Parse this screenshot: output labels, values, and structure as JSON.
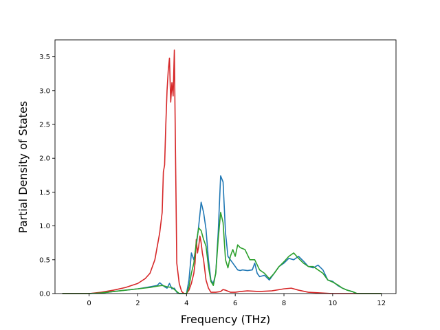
{
  "chart_data": {
    "type": "line",
    "title": "",
    "xlabel": "Frequency (THz)",
    "ylabel": "Partial Density of States",
    "xlim": [
      -1.4,
      12.6
    ],
    "ylim": [
      0,
      3.75
    ],
    "xticks": [
      0,
      2,
      4,
      6,
      8,
      10,
      12
    ],
    "xtick_labels": [
      "0",
      "2",
      "4",
      "6",
      "8",
      "10",
      "12"
    ],
    "yticks": [
      0,
      0.5,
      1.0,
      1.5,
      2.0,
      2.5,
      3.0,
      3.5
    ],
    "ytick_labels": [
      "0.0",
      "0.5",
      "1.0",
      "1.5",
      "2.0",
      "2.5",
      "3.0",
      "3.5"
    ],
    "grid": false,
    "legend": false,
    "series": [
      {
        "color": "#1f77b4",
        "x": [
          -1.1,
          0.0,
          0.5,
          1.0,
          1.5,
          2.0,
          2.5,
          2.8,
          2.9,
          3.0,
          3.1,
          3.2,
          3.3,
          3.4,
          3.5,
          3.6,
          3.7,
          3.8,
          3.9,
          4.0,
          4.1,
          4.2,
          4.3,
          4.4,
          4.5,
          4.6,
          4.7,
          4.8,
          4.9,
          5.0,
          5.1,
          5.2,
          5.3,
          5.4,
          5.5,
          5.6,
          5.7,
          5.8,
          5.9,
          6.0,
          6.1,
          6.2,
          6.3,
          6.5,
          6.7,
          6.8,
          6.9,
          7.0,
          7.2,
          7.4,
          7.6,
          7.8,
          8.0,
          8.2,
          8.4,
          8.6,
          8.8,
          9.0,
          9.2,
          9.4,
          9.6,
          9.8,
          10.0,
          10.2,
          10.4,
          10.6,
          10.8,
          11.0,
          11.5,
          12.0
        ],
        "y": [
          0.0,
          0.0,
          0.01,
          0.03,
          0.05,
          0.07,
          0.1,
          0.12,
          0.16,
          0.13,
          0.1,
          0.08,
          0.15,
          0.07,
          0.08,
          0.02,
          0.0,
          0.0,
          0.0,
          0.0,
          0.2,
          0.6,
          0.5,
          0.7,
          1.0,
          1.35,
          1.2,
          0.95,
          0.5,
          0.2,
          0.15,
          0.3,
          0.9,
          1.74,
          1.65,
          0.9,
          0.55,
          0.5,
          0.45,
          0.4,
          0.35,
          0.34,
          0.35,
          0.34,
          0.35,
          0.45,
          0.3,
          0.25,
          0.27,
          0.2,
          0.3,
          0.4,
          0.45,
          0.52,
          0.5,
          0.55,
          0.48,
          0.4,
          0.38,
          0.42,
          0.35,
          0.2,
          0.18,
          0.12,
          0.08,
          0.05,
          0.03,
          0.0,
          0.0,
          0.0
        ]
      },
      {
        "color": "#d62728",
        "x": [
          -1.1,
          0.0,
          0.5,
          1.0,
          1.5,
          2.0,
          2.3,
          2.5,
          2.7,
          2.9,
          3.0,
          3.05,
          3.1,
          3.15,
          3.2,
          3.25,
          3.3,
          3.35,
          3.4,
          3.45,
          3.5,
          3.55,
          3.6,
          3.7,
          3.8,
          3.9,
          4.0,
          4.1,
          4.2,
          4.3,
          4.35,
          4.4,
          4.45,
          4.5,
          4.55,
          4.6,
          4.65,
          4.7,
          4.8,
          4.9,
          5.0,
          5.2,
          5.4,
          5.5,
          5.6,
          5.8,
          6.0,
          6.2,
          6.5,
          7.0,
          7.5,
          8.0,
          8.3,
          8.6,
          9.0,
          9.5,
          10.0,
          10.5,
          11.0,
          11.5,
          12.0
        ],
        "y": [
          0.0,
          0.0,
          0.02,
          0.05,
          0.09,
          0.15,
          0.22,
          0.3,
          0.5,
          0.9,
          1.2,
          1.8,
          1.9,
          2.5,
          3.0,
          3.3,
          3.48,
          2.83,
          3.12,
          2.92,
          3.6,
          2.0,
          0.45,
          0.15,
          0.03,
          0.0,
          0.0,
          0.05,
          0.15,
          0.3,
          0.45,
          0.8,
          0.6,
          0.7,
          0.85,
          0.75,
          0.6,
          0.5,
          0.2,
          0.08,
          0.02,
          0.02,
          0.03,
          0.06,
          0.05,
          0.02,
          0.02,
          0.03,
          0.04,
          0.03,
          0.04,
          0.07,
          0.08,
          0.05,
          0.02,
          0.01,
          0.0,
          0.0,
          0.0,
          0.0,
          0.0
        ]
      },
      {
        "color": "#2ca02c",
        "x": [
          -1.1,
          0.0,
          0.5,
          1.0,
          1.5,
          2.0,
          2.5,
          2.8,
          3.0,
          3.2,
          3.4,
          3.6,
          3.7,
          3.8,
          3.9,
          4.0,
          4.1,
          4.2,
          4.3,
          4.4,
          4.5,
          4.6,
          4.7,
          4.8,
          4.9,
          5.0,
          5.1,
          5.2,
          5.3,
          5.4,
          5.5,
          5.6,
          5.7,
          5.8,
          5.9,
          6.0,
          6.1,
          6.2,
          6.4,
          6.6,
          6.8,
          7.0,
          7.2,
          7.4,
          7.6,
          7.8,
          8.0,
          8.2,
          8.4,
          8.6,
          8.8,
          9.0,
          9.2,
          9.4,
          9.6,
          9.8,
          10.0,
          10.2,
          10.4,
          10.6,
          10.8,
          11.0,
          11.5,
          12.0
        ],
        "y": [
          0.0,
          0.0,
          0.01,
          0.03,
          0.05,
          0.07,
          0.09,
          0.11,
          0.12,
          0.1,
          0.09,
          0.03,
          0.0,
          0.0,
          0.0,
          0.0,
          0.1,
          0.3,
          0.45,
          0.75,
          0.97,
          0.93,
          0.8,
          0.7,
          0.4,
          0.18,
          0.12,
          0.3,
          0.8,
          1.2,
          1.05,
          0.5,
          0.38,
          0.55,
          0.65,
          0.55,
          0.72,
          0.68,
          0.65,
          0.5,
          0.5,
          0.35,
          0.3,
          0.22,
          0.3,
          0.4,
          0.47,
          0.55,
          0.6,
          0.52,
          0.45,
          0.4,
          0.4,
          0.35,
          0.3,
          0.2,
          0.17,
          0.13,
          0.08,
          0.05,
          0.03,
          0.0,
          0.0,
          0.0
        ]
      }
    ]
  }
}
